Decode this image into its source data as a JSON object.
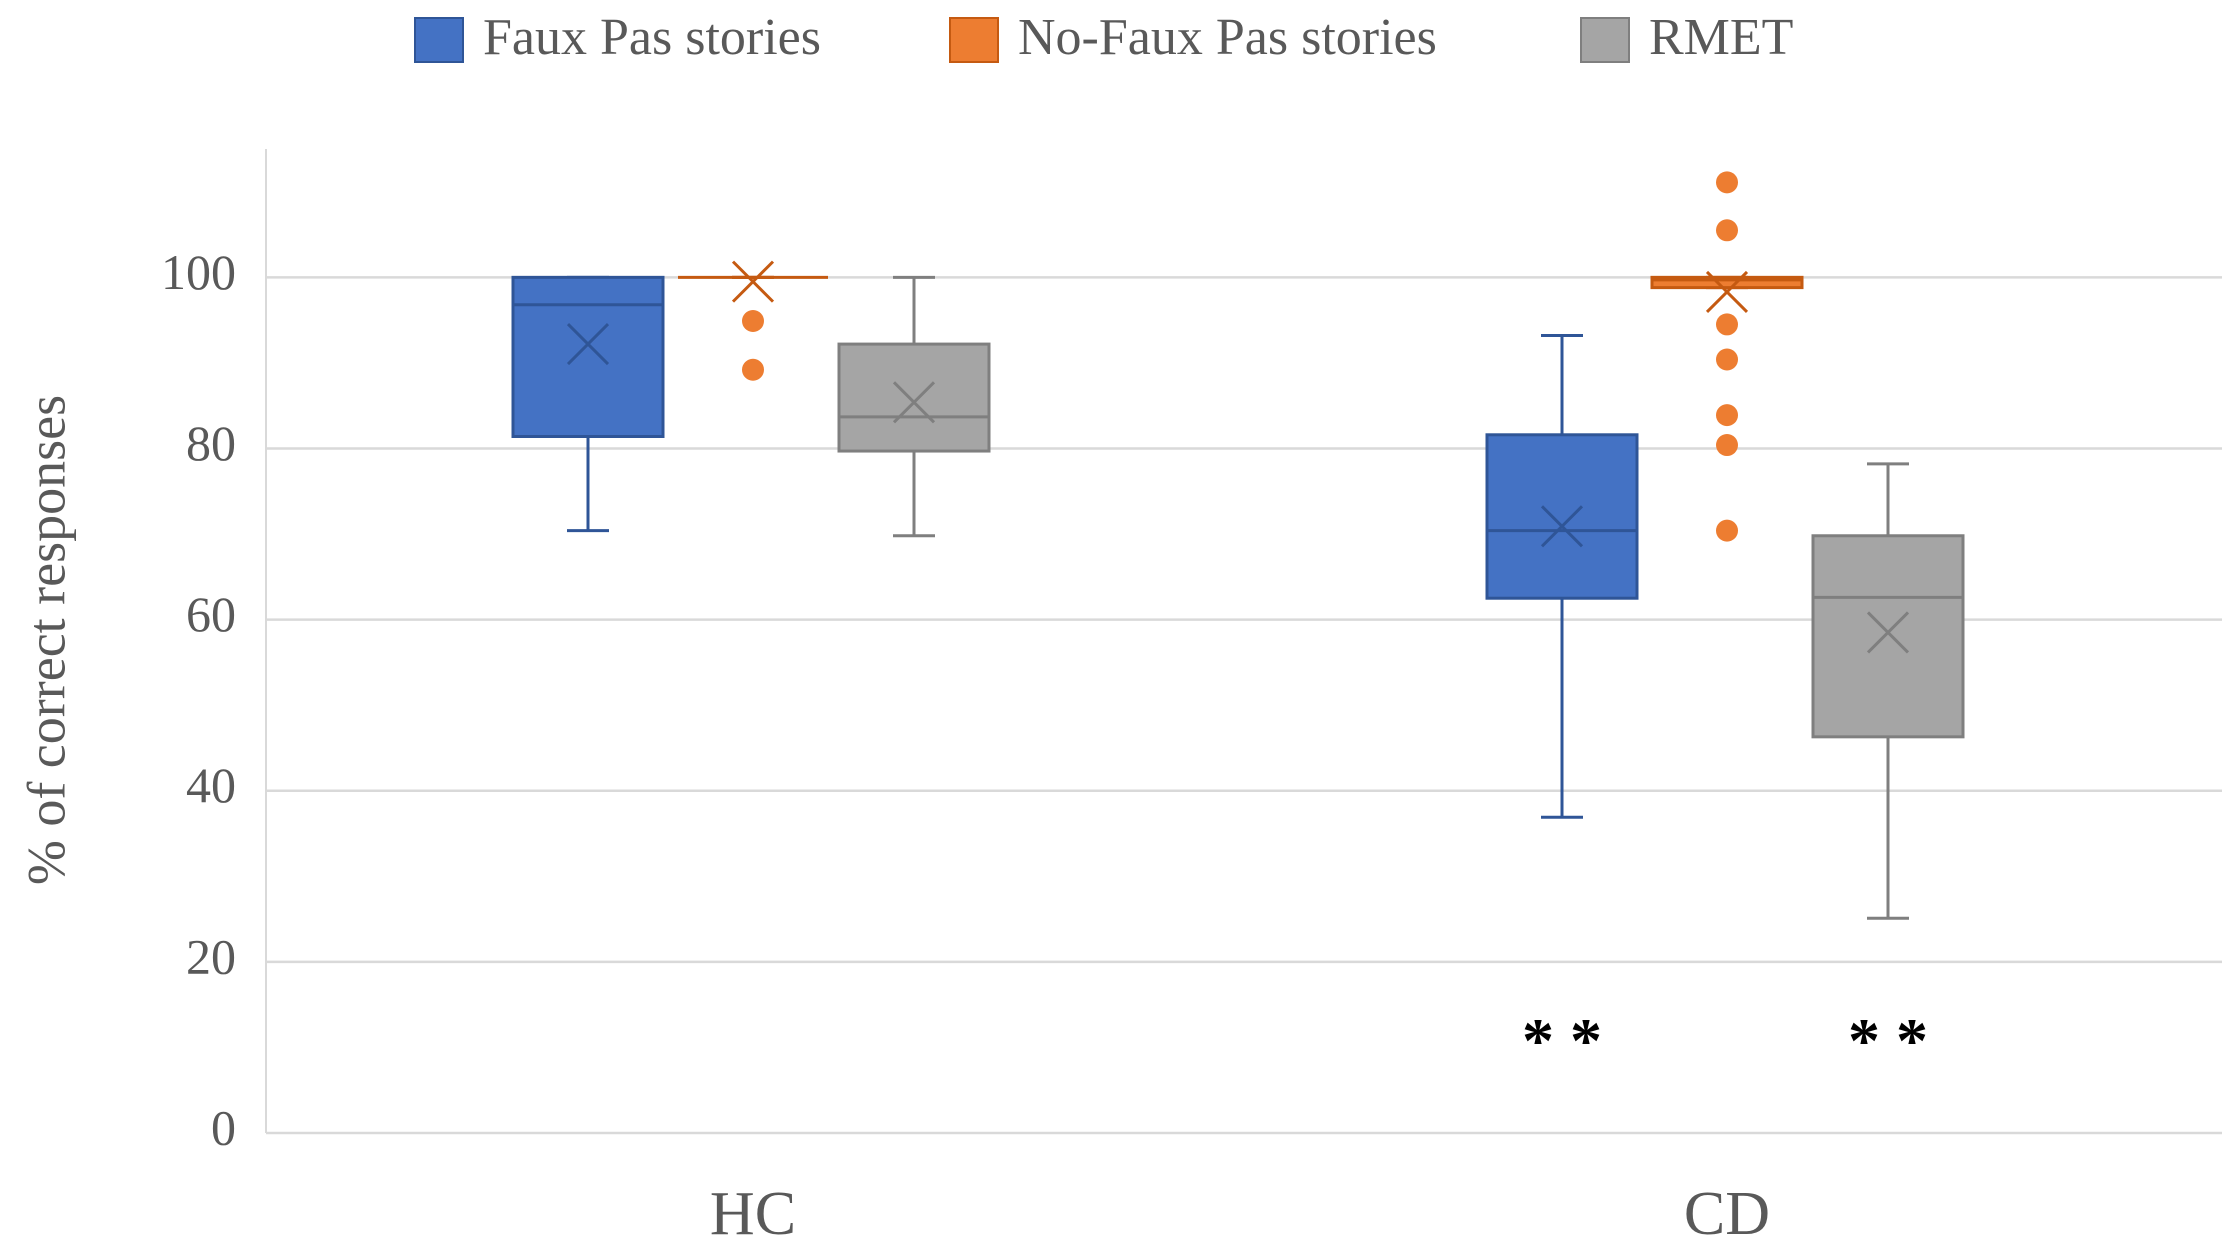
{
  "chart_data": {
    "type": "box",
    "y_label": "% of correct responses",
    "categories": [
      "HC",
      "CD"
    ],
    "ylim": [
      0,
      115
    ],
    "yticks": [
      0,
      20,
      40,
      60,
      80,
      100
    ],
    "grid": true,
    "legend": "top",
    "series": [
      {
        "name": "Faux Pas stories",
        "color": "#4472c4",
        "edge": "#2f5597",
        "boxes": [
          {
            "min": 70.4,
            "q1": 81.4,
            "median": 96.8,
            "q3": 100,
            "max": 100,
            "mean": 92.2,
            "outliers": []
          },
          {
            "min": 36.9,
            "q1": 62.5,
            "median": 70.4,
            "q3": 81.6,
            "max": 93.2,
            "mean": 70.9,
            "outliers": []
          }
        ]
      },
      {
        "name": "No-Faux Pas stories",
        "color": "#ed7d31",
        "edge": "#c55a11",
        "boxes": [
          {
            "min": 100,
            "q1": 100,
            "median": 100,
            "q3": 100,
            "max": 100,
            "mean": 99.5,
            "outliers": [
              94.9,
              89.2
            ]
          },
          {
            "min": 98.8,
            "q1": 98.8,
            "median": 99.7,
            "q3": 100,
            "max": 100,
            "mean": 98.3,
            "outliers": [
              111.1,
              105.5,
              94.5,
              90.4,
              83.9,
              80.4,
              70.4
            ]
          }
        ]
      },
      {
        "name": "RMET",
        "color": "#a5a5a5",
        "edge": "#7f7f7f",
        "boxes": [
          {
            "min": 69.8,
            "q1": 79.7,
            "median": 83.7,
            "q3": 92.2,
            "max": 100,
            "mean": 85.4,
            "outliers": []
          },
          {
            "min": 25.1,
            "q1": 46.3,
            "median": 62.6,
            "q3": 69.8,
            "max": 78.2,
            "mean": 58.5,
            "outliers": []
          }
        ]
      }
    ],
    "annotations": [
      "* *",
      "* *"
    ]
  }
}
